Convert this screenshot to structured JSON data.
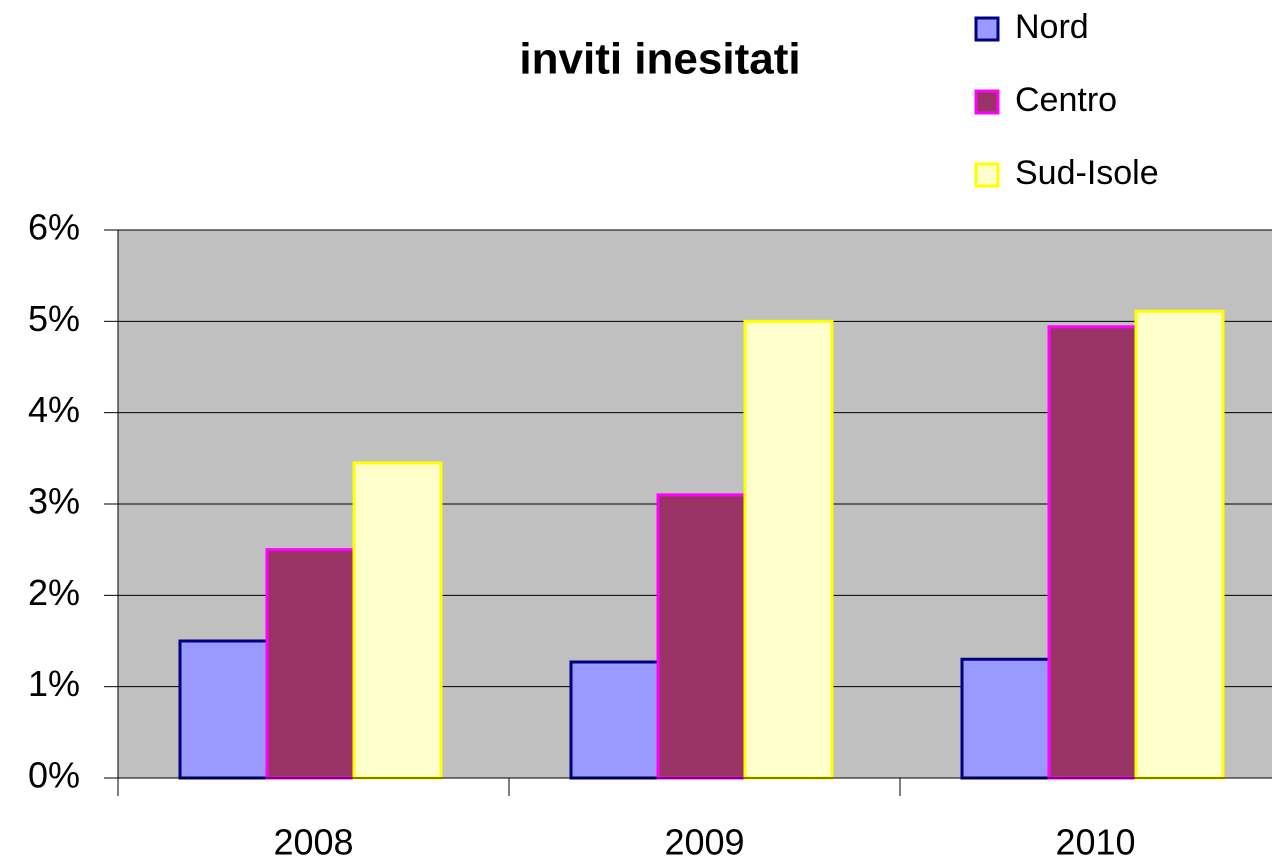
{
  "chart_data": {
    "type": "bar",
    "title": "inviti inesitati",
    "categories": [
      "2008",
      "2009",
      "2010"
    ],
    "series": [
      {
        "name": "Nord",
        "color": "#9999ff",
        "edge": "#000080",
        "values": [
          1.5,
          1.27,
          1.3
        ]
      },
      {
        "name": "Centro",
        "color": "#993366",
        "edge": "#ff00ff",
        "values": [
          2.5,
          3.1,
          4.94
        ]
      },
      {
        "name": "Sud-Isole",
        "color": "#ffffcc",
        "edge": "#ffff00",
        "values": [
          3.45,
          5.0,
          5.11
        ]
      }
    ],
    "ylim": [
      0,
      6
    ],
    "yticks": [
      {
        "value": 0,
        "label": "0%"
      },
      {
        "value": 1,
        "label": "1%"
      },
      {
        "value": 2,
        "label": "2%"
      },
      {
        "value": 3,
        "label": "3%"
      },
      {
        "value": 4,
        "label": "4%"
      },
      {
        "value": 5,
        "label": "5%"
      },
      {
        "value": 6,
        "label": "6%"
      }
    ],
    "grid": true,
    "legend": "top-right",
    "plot_background": "#c0c0c0"
  }
}
